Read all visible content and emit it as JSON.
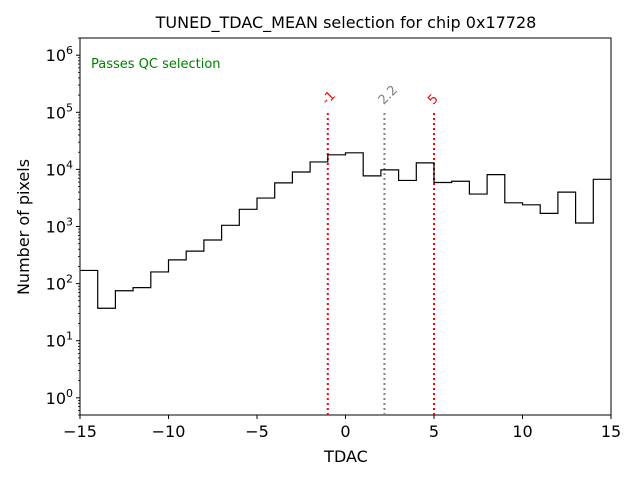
{
  "chart_data": {
    "type": "histogram",
    "title": "TUNED_TDAC_MEAN selection for chip 0x17728",
    "xlabel": "TDAC",
    "ylabel": "Number of pixels",
    "yscale": "log",
    "xlim": [
      -15,
      15
    ],
    "ylim": [
      0.5,
      2000000
    ],
    "xticks": [
      -15,
      -10,
      -5,
      0,
      5,
      10,
      15
    ],
    "xtick_labels": [
      "−15",
      "−10",
      "−5",
      "0",
      "5",
      "10",
      "15"
    ],
    "yticks": [
      1,
      10,
      100,
      1000,
      10000,
      100000,
      1000000
    ],
    "ytick_bases": [
      "10",
      "10",
      "10",
      "10",
      "10",
      "10",
      "10"
    ],
    "ytick_exponents": [
      "0",
      "1",
      "2",
      "3",
      "4",
      "5",
      "6"
    ],
    "bin_edges": [
      -15,
      -14,
      -13,
      -12,
      -11,
      -10,
      -9,
      -8,
      -7,
      -6,
      -5,
      -4,
      -3,
      -2,
      -1,
      0,
      1,
      2,
      3,
      4,
      5,
      6,
      7,
      8,
      9,
      10,
      11,
      12,
      13,
      14,
      15
    ],
    "counts": [
      170,
      37,
      75,
      85,
      160,
      260,
      370,
      580,
      1050,
      2000,
      3150,
      5800,
      9000,
      13500,
      18000,
      19500,
      7700,
      9800,
      6400,
      13000,
      5900,
      6200,
      3700,
      8100,
      2600,
      2400,
      1700,
      4000,
      1150,
      6700
    ],
    "hist_color": "#000000",
    "annotation": {
      "text": "Passes QC selection",
      "color": "#008000",
      "position": "top-left"
    },
    "vlines": [
      {
        "x": -1,
        "label": "-1",
        "color": "#ff0000",
        "style": "dotted",
        "y_top": 100000
      },
      {
        "x": 2.2,
        "label": "2.2",
        "color": "#808080",
        "style": "dotted",
        "y_top": 100000
      },
      {
        "x": 5,
        "label": "5",
        "color": "#ff0000",
        "style": "dotted",
        "y_top": 100000
      }
    ]
  }
}
